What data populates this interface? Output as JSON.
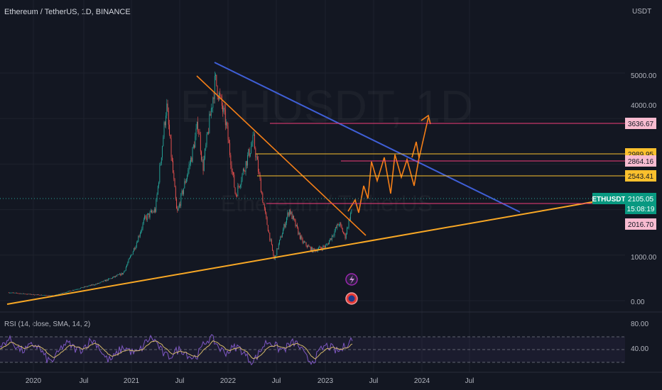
{
  "header": {
    "symbol_line": "Ethereum / TetherUS, 1D, BINANCE",
    "unit": "USDT"
  },
  "watermark": {
    "symbol": "ETHUSDT, 1D",
    "name": "Ethereum / TetherUS"
  },
  "colors": {
    "background": "#131722",
    "grid": "#1e222d",
    "blue_line": "#3f5fd7",
    "orange_line": "#f57f17",
    "support_line": "#f9a825",
    "pink_level": "#f23e7a",
    "yellow_level": "#fbc02d",
    "candle_up": "#26a69a",
    "candle_down": "#ef5350",
    "rsi_line": "#d4b86a",
    "rsi_band": "#7e57c2"
  },
  "chart_data": {
    "type": "candlestick",
    "x_ticks": [
      "2020",
      "Jul",
      "2021",
      "Jul",
      "2022",
      "Jul",
      "2023",
      "Jul",
      "2024",
      "Jul"
    ],
    "y_ticks": [
      "5000.00",
      "4000.00",
      "1000.00",
      "0.00"
    ],
    "price_levels": [
      {
        "label": "3636.67",
        "value": 3636.67,
        "style": "pink"
      },
      {
        "label": "2989.95",
        "value": 2989.95,
        "style": "yellow"
      },
      {
        "label": "2864.16",
        "value": 2864.16,
        "style": "pink"
      },
      {
        "label": "2543.41",
        "value": 2543.41,
        "style": "yellow"
      },
      {
        "label": "2016.70",
        "value": 2016.7,
        "style": "pink"
      }
    ],
    "current_price": {
      "symbol": "ETHUSDT",
      "price": "2105.05",
      "countdown": "15:08:19",
      "value": 2105.05
    },
    "price_path": [
      [
        "2019-10-01",
        180
      ],
      [
        "2020-01-01",
        135
      ],
      [
        "2020-03-15",
        110
      ],
      [
        "2020-06-01",
        240
      ],
      [
        "2020-09-01",
        380
      ],
      [
        "2020-12-01",
        600
      ],
      [
        "2021-01-15",
        1200
      ],
      [
        "2021-02-20",
        1800
      ],
      [
        "2021-04-01",
        2000
      ],
      [
        "2021-05-12",
        4300
      ],
      [
        "2021-06-20",
        1900
      ],
      [
        "2021-08-15",
        3200
      ],
      [
        "2021-09-07",
        3900
      ],
      [
        "2021-09-25",
        2900
      ],
      [
        "2021-11-10",
        4850
      ],
      [
        "2021-12-20",
        3900
      ],
      [
        "2022-01-25",
        2300
      ],
      [
        "2022-02-20",
        2800
      ],
      [
        "2022-04-02",
        3550
      ],
      [
        "2022-05-12",
        2000
      ],
      [
        "2022-06-18",
        900
      ],
      [
        "2022-08-13",
        2000
      ],
      [
        "2022-09-30",
        1300
      ],
      [
        "2022-11-09",
        1100
      ],
      [
        "2022-12-30",
        1200
      ],
      [
        "2023-02-15",
        1700
      ],
      [
        "2023-03-10",
        1400
      ],
      [
        "2023-04-05",
        2050
      ]
    ],
    "rsi_ticks": [
      "80.00",
      "40.00"
    ],
    "rsi_label": "RSI (14, close, SMA, 14, 2)"
  }
}
